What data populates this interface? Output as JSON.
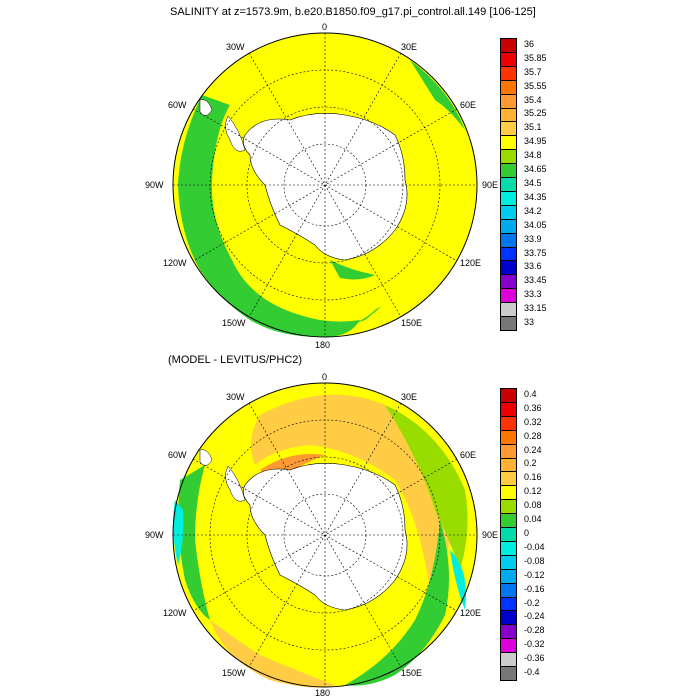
{
  "panels": [
    {
      "title": "SALINITY at z=1573.9m, b.e20.B1850.f09_g17.pi_control.all.149 [106-125]",
      "lon_labels": [
        "0",
        "30E",
        "60E",
        "90E",
        "120E",
        "150E",
        "180",
        "150W",
        "120W",
        "90W",
        "60W",
        "30W"
      ],
      "colorbar": {
        "labels": [
          "36",
          "35.85",
          "35.7",
          "35.55",
          "35.4",
          "35.25",
          "35.1",
          "34.95",
          "34.8",
          "34.65",
          "34.5",
          "34.35",
          "34.2",
          "34.05",
          "33.9",
          "33.75",
          "33.6",
          "33.45",
          "33.3",
          "33.15",
          "33"
        ],
        "colors": [
          "#c80000",
          "#ee0000",
          "#ff3300",
          "#ff7700",
          "#ff9933",
          "#ffb133",
          "#ffcc44",
          "#ffff00",
          "#99dd00",
          "#33cc33",
          "#00ddaa",
          "#00eedd",
          "#00ccee",
          "#00aaee",
          "#0077ee",
          "#0033ff",
          "#0000cc",
          "#8800cc",
          "#dd00dd",
          "#cccccc",
          "#777777"
        ]
      }
    },
    {
      "title": "(MODEL - LEVITUS/PHC2)",
      "lon_labels": [
        "0",
        "30E",
        "60E",
        "90E",
        "120E",
        "150E",
        "180",
        "150W",
        "120W",
        "90W",
        "60W",
        "30W"
      ],
      "colorbar": {
        "labels": [
          "0.4",
          "0.36",
          "0.32",
          "0.28",
          "0.24",
          "0.2",
          "0.16",
          "0.12",
          "0.08",
          "0.04",
          "0",
          "-0.04",
          "-0.08",
          "-0.12",
          "-0.16",
          "-0.2",
          "-0.24",
          "-0.28",
          "-0.32",
          "-0.36",
          "-0.4"
        ],
        "colors": [
          "#c80000",
          "#ee0000",
          "#ff3300",
          "#ff7700",
          "#ff9933",
          "#ffb133",
          "#ffcc44",
          "#ffff00",
          "#99dd00",
          "#33cc33",
          "#00ddaa",
          "#00eedd",
          "#00ccee",
          "#00aaee",
          "#0077ee",
          "#0033ff",
          "#0000cc",
          "#8800cc",
          "#dd00dd",
          "#cccccc",
          "#777777"
        ]
      }
    }
  ]
}
